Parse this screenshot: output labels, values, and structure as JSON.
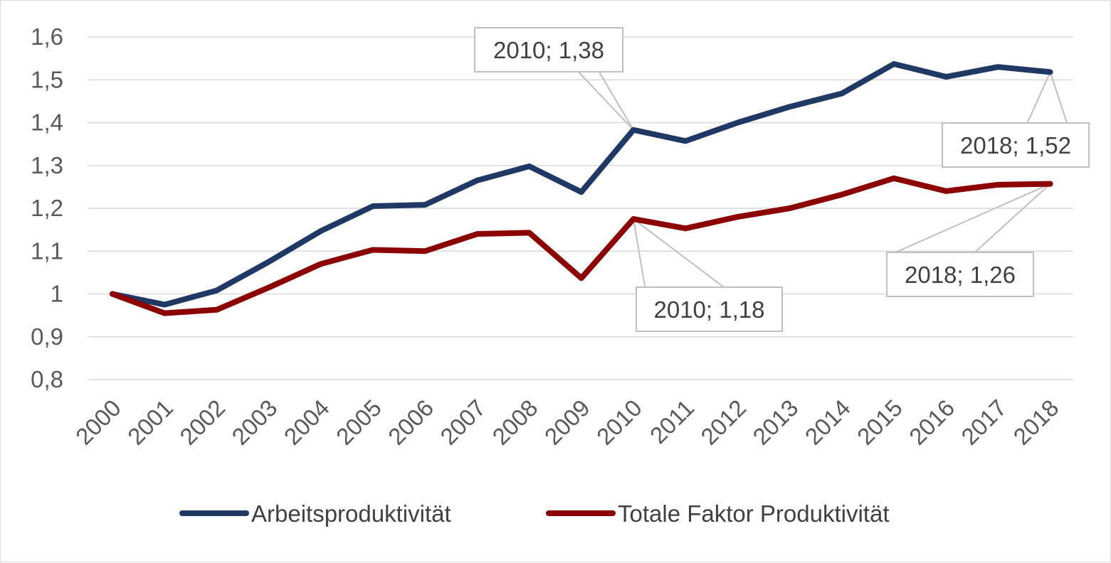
{
  "chart_data": {
    "type": "line",
    "title": "",
    "xlabel": "",
    "ylabel": "",
    "ylim": [
      0.8,
      1.6
    ],
    "y_ticks": [
      "0,8",
      "0,9",
      "1",
      "1,1",
      "1,2",
      "1,3",
      "1,4",
      "1,5",
      "1,6"
    ],
    "y_tick_values": [
      0.8,
      0.9,
      1.0,
      1.1,
      1.2,
      1.3,
      1.4,
      1.5,
      1.6
    ],
    "grid": "horizontal",
    "legend": "bottom",
    "categories": [
      "2000",
      "2001",
      "2002",
      "2003",
      "2004",
      "2005",
      "2006",
      "2007",
      "2008",
      "2009",
      "2010",
      "2011",
      "2012",
      "2013",
      "2014",
      "2015",
      "2016",
      "2017",
      "2018"
    ],
    "series": [
      {
        "name": "Arbeitsproduktivität",
        "color": "#1f3864",
        "values": [
          1.0,
          0.975,
          1.008,
          1.075,
          1.147,
          1.205,
          1.208,
          1.265,
          1.298,
          1.238,
          1.383,
          1.357,
          1.4,
          1.437,
          1.468,
          1.537,
          1.507,
          1.53,
          1.518
        ]
      },
      {
        "name": "Totale Faktor Produktivität",
        "color": "#8b0000",
        "values": [
          1.0,
          0.955,
          0.963,
          1.015,
          1.07,
          1.103,
          1.1,
          1.14,
          1.143,
          1.037,
          1.175,
          1.153,
          1.18,
          1.2,
          1.232,
          1.27,
          1.24,
          1.255,
          1.257
        ]
      }
    ],
    "annotations": [
      {
        "text": "2010; 1,38",
        "series": 0,
        "category": "2010"
      },
      {
        "text": "2018; 1,52",
        "series": 0,
        "category": "2018"
      },
      {
        "text": "2010; 1,18",
        "series": 1,
        "category": "2010"
      },
      {
        "text": "2018; 1,26",
        "series": 1,
        "category": "2018"
      }
    ]
  }
}
